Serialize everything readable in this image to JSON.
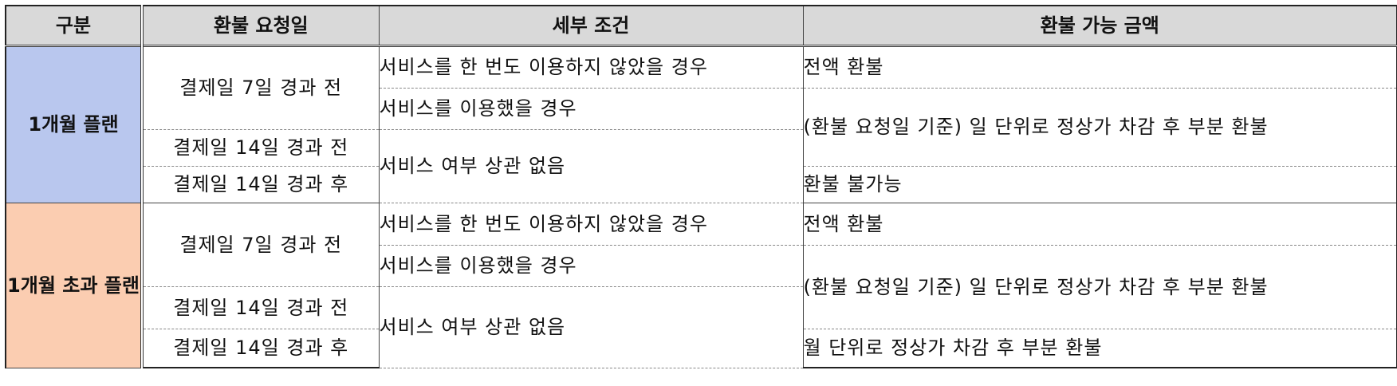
{
  "table": {
    "headers": {
      "category": "구분",
      "request_date": "환불 요청일",
      "condition": "세부 조건",
      "amount": "환불 가능 금액"
    },
    "plans": [
      {
        "name": "1개월 플랜",
        "color": "#b9c7ee",
        "dates": [
          "결제일 7일 경과 전",
          "결제일 14일 경과 전",
          "결제일 14일 경과 후"
        ],
        "conditions": [
          "서비스를 한 번도 이용하지 않았을 경우",
          "서비스를 이용했을 경우",
          "서비스 여부 상관 없음"
        ],
        "amounts": [
          "전액 환불",
          "(환불 요청일 기준) 일 단위로 정상가 차감 후 부분 환불",
          "환불 불가능"
        ]
      },
      {
        "name": "1개월 초과 플랜",
        "color": "#fbcdb1",
        "dates": [
          "결제일 7일 경과 전",
          "결제일 14일 경과 전",
          "결제일 14일 경과 후"
        ],
        "conditions": [
          "서비스를 한 번도 이용하지 않았을 경우",
          "서비스를 이용했을 경우",
          "서비스 여부 상관 없음"
        ],
        "amounts": [
          "전액 환불",
          "(환불 요청일 기준) 일 단위로 정상가 차감 후 부분 환불",
          "월 단위로 정상가 차감 후 부분 환불"
        ]
      }
    ]
  }
}
